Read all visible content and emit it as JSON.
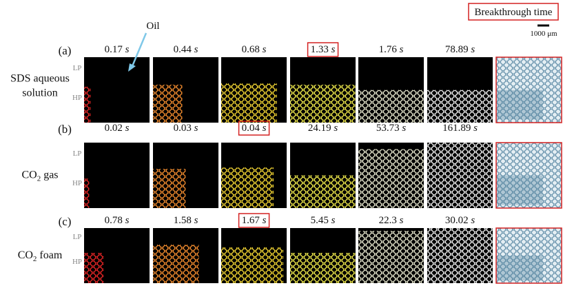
{
  "legend_box": "Breakthrough time",
  "scale_bar": "1000 μm",
  "oil_label": "Oil",
  "pressure_labels": {
    "low": "LP",
    "high": "HP"
  },
  "time_unit": "s",
  "rows": [
    {
      "label": "(a)",
      "name_lines": [
        "SDS aqueous",
        "solution"
      ],
      "times": [
        "0.17",
        "0.44",
        "0.68",
        "1.33",
        "1.76",
        "78.89"
      ],
      "breakthrough_index": 3
    },
    {
      "label": "(b)",
      "name": {
        "main": "CO",
        "sub": "2",
        "rest": " gas"
      },
      "times": [
        "0.02",
        "0.03",
        "0.04",
        "24.19",
        "53.73",
        "161.89"
      ],
      "breakthrough_index": 2
    },
    {
      "label": "(c)",
      "name": {
        "main": "CO",
        "sub": "2",
        "rest": " foam"
      },
      "times": [
        "0.78",
        "1.58",
        "1.67",
        "5.45",
        "22.3",
        "30.02"
      ],
      "breakthrough_index": 2
    }
  ]
}
